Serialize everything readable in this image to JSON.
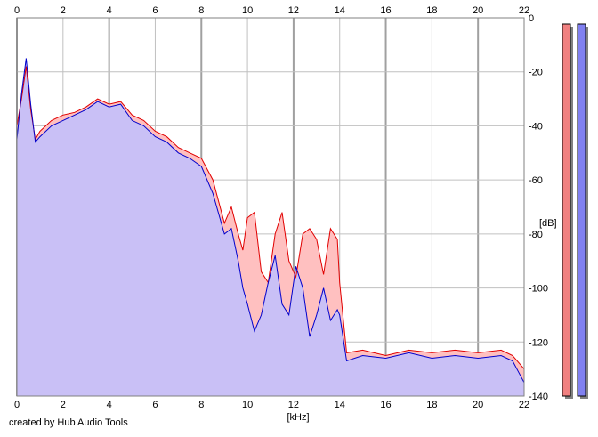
{
  "chart_data": {
    "type": "area",
    "xlabel": "[kHz]",
    "ylabel": "[dB]",
    "xlim": [
      0,
      22
    ],
    "ylim": [
      -140,
      0
    ],
    "x_ticks": [
      0,
      2,
      4,
      6,
      8,
      10,
      12,
      14,
      16,
      18,
      20,
      22
    ],
    "y_ticks": [
      0,
      -20,
      -40,
      -60,
      -80,
      -100,
      -120,
      -140
    ],
    "grid": true,
    "series": [
      {
        "color": "#e00000",
        "fill": "#ffc0c0",
        "x": [
          0,
          0.2,
          0.4,
          0.6,
          0.8,
          1.0,
          1.5,
          2.0,
          2.5,
          3.0,
          3.5,
          4.0,
          4.5,
          5.0,
          5.5,
          6.0,
          6.5,
          7.0,
          7.5,
          8.0,
          8.5,
          9.0,
          9.3,
          9.6,
          9.8,
          10.0,
          10.3,
          10.6,
          10.9,
          11.2,
          11.5,
          11.8,
          12.1,
          12.4,
          12.7,
          13.0,
          13.3,
          13.6,
          13.9,
          14.0,
          14.3,
          15,
          16,
          17,
          18,
          19,
          20,
          21,
          21.5,
          22
        ],
        "values": [
          -40,
          -30,
          -18,
          -34,
          -45,
          -42,
          -38,
          -36,
          -35,
          -33,
          -30,
          -32,
          -31,
          -36,
          -38,
          -42,
          -44,
          -48,
          -50,
          -52,
          -60,
          -76,
          -70,
          -80,
          -86,
          -74,
          -72,
          -94,
          -98,
          -80,
          -72,
          -90,
          -96,
          -80,
          -78,
          -82,
          -95,
          -78,
          -82,
          -98,
          -124,
          -123,
          -125,
          -123,
          -124,
          -123,
          -124,
          -123,
          -125,
          -130
        ]
      },
      {
        "color": "#0000cc",
        "fill": "#c0c0ff",
        "x": [
          0,
          0.2,
          0.4,
          0.6,
          0.8,
          1.0,
          1.5,
          2.0,
          2.5,
          3.0,
          3.5,
          4.0,
          4.5,
          5.0,
          5.5,
          6.0,
          6.5,
          7.0,
          7.5,
          8.0,
          8.5,
          9.0,
          9.3,
          9.6,
          9.8,
          10.0,
          10.3,
          10.6,
          10.9,
          11.2,
          11.5,
          11.8,
          12.1,
          12.4,
          12.7,
          13.0,
          13.3,
          13.6,
          13.9,
          14.0,
          14.3,
          15,
          16,
          17,
          18,
          19,
          20,
          21,
          21.5,
          22
        ],
        "values": [
          -45,
          -28,
          -15,
          -32,
          -46,
          -44,
          -40,
          -38,
          -36,
          -34,
          -31,
          -33,
          -32,
          -38,
          -40,
          -44,
          -46,
          -50,
          -52,
          -55,
          -65,
          -80,
          -78,
          -90,
          -100,
          -106,
          -116,
          -110,
          -98,
          -88,
          -106,
          -110,
          -92,
          -100,
          -118,
          -110,
          -100,
          -112,
          -108,
          -110,
          -127,
          -125,
          -126,
          -124,
          -126,
          -125,
          -126,
          -125,
          -127,
          -135
        ]
      }
    ],
    "level_meters": [
      {
        "color": "#f08080",
        "level": 1.0
      },
      {
        "color": "#8080f0",
        "level": 1.0
      }
    ]
  },
  "footer": {
    "credit": "created by Hub Audio Tools"
  }
}
